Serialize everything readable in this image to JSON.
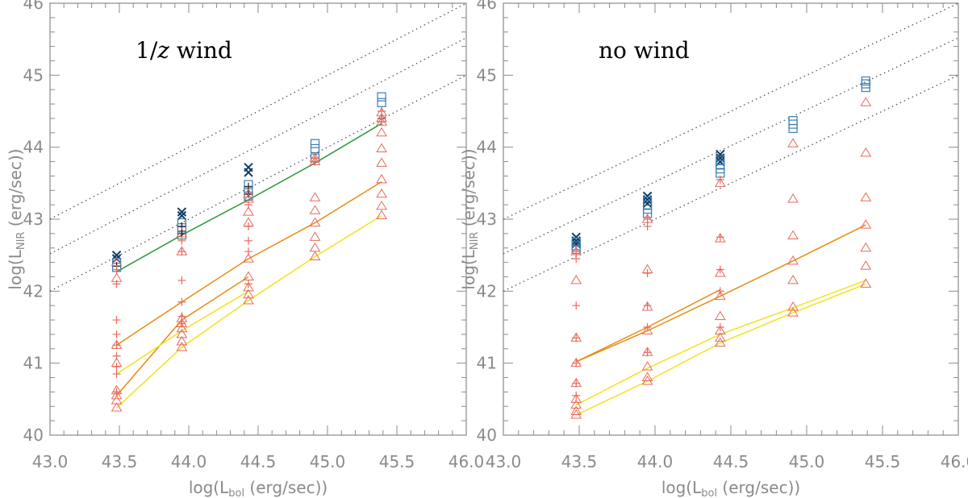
{
  "chart_data": [
    {
      "type": "scatter",
      "title": "",
      "annotation": {
        "before": "1/",
        "italic": "z",
        "after": " wind"
      },
      "xlabel": {
        "prefix": "log(L",
        "sub": "bol",
        "suffix": " (erg/sec))"
      },
      "ylabel": {
        "prefix": "log(L",
        "sub": "NIR",
        "suffix": " (erg/sec))"
      },
      "xlim": [
        43.0,
        46.0
      ],
      "ylim": [
        40.0,
        46.0
      ],
      "xticks": [
        "43.0",
        "43.5",
        "44.0",
        "44.5",
        "45.0",
        "45.5",
        "46.0"
      ],
      "yticks": [
        "40",
        "41",
        "42",
        "43",
        "44",
        "45",
        "46"
      ],
      "reference_lines": [
        {
          "name": "ratio-1-0",
          "points": [
            [
              43.0,
              43.0
            ],
            [
              46.0,
              46.0
            ]
          ]
        },
        {
          "name": "ratio-0-3",
          "points": [
            [
              43.0,
              42.52
            ],
            [
              46.0,
              45.52
            ]
          ]
        },
        {
          "name": "ratio-0-1",
          "points": [
            [
              43.0,
              42.0
            ],
            [
              46.0,
              45.0
            ]
          ]
        }
      ],
      "lines": [
        {
          "name": "green",
          "color": "#2e9a3a",
          "points": [
            [
              43.48,
              42.27
            ],
            [
              43.95,
              42.78
            ],
            [
              44.43,
              43.27
            ],
            [
              44.91,
              43.78
            ],
            [
              45.39,
              44.33
            ]
          ]
        },
        {
          "name": "orange-upper",
          "color": "#e88b12",
          "points": [
            [
              43.48,
              41.25
            ],
            [
              43.95,
              41.85
            ],
            [
              44.43,
              42.45
            ],
            [
              44.91,
              42.95
            ],
            [
              45.39,
              43.52
            ]
          ]
        },
        {
          "name": "orange-lower",
          "color": "#e88b12",
          "points": [
            [
              43.48,
              40.55
            ],
            [
              43.95,
              41.6
            ],
            [
              44.43,
              42.2
            ]
          ]
        },
        {
          "name": "yellow-upper",
          "color": "#f2e21a",
          "points": [
            [
              43.48,
              40.85
            ],
            [
              43.95,
              41.45
            ],
            [
              44.43,
              42.0
            ]
          ]
        },
        {
          "name": "yellow-lower",
          "color": "#f2e21a",
          "points": [
            [
              43.48,
              40.38
            ],
            [
              43.95,
              41.22
            ],
            [
              44.43,
              41.87
            ],
            [
              44.91,
              42.48
            ],
            [
              45.39,
              43.05
            ]
          ]
        }
      ],
      "markers": [
        {
          "series": "cross",
          "color": "#0b3a62",
          "x": [
            43.48,
            43.48,
            43.95,
            43.95,
            44.43,
            44.43
          ],
          "y": [
            42.5,
            42.45,
            43.1,
            43.05,
            43.72,
            43.65
          ]
        },
        {
          "series": "square",
          "color": "#3a7eb0",
          "x": [
            43.48,
            43.48,
            43.95,
            43.95,
            43.95,
            44.43,
            44.43,
            44.43,
            44.91,
            44.91,
            44.91,
            45.39,
            45.39
          ],
          "y": [
            42.4,
            42.33,
            42.95,
            42.88,
            42.78,
            43.48,
            43.4,
            43.32,
            44.05,
            43.98,
            43.85,
            44.7,
            44.62
          ]
        },
        {
          "series": "plus-black",
          "color": "#1a1a2e",
          "x": [
            43.48,
            43.95,
            43.95,
            44.43,
            44.43,
            44.91,
            45.39
          ],
          "y": [
            42.35,
            42.9,
            42.8,
            43.45,
            43.35,
            43.85,
            44.4
          ]
        },
        {
          "series": "plus",
          "color": "#e86a5c",
          "x": [
            43.48,
            43.48,
            43.48,
            43.48,
            43.48,
            43.48,
            43.48,
            43.48,
            43.48,
            43.95,
            43.95,
            43.95,
            43.95,
            43.95,
            43.95,
            44.43,
            44.43,
            44.43,
            44.43,
            44.43,
            44.91,
            44.91,
            45.39,
            45.39
          ],
          "y": [
            42.3,
            42.1,
            41.6,
            41.4,
            41.25,
            41.1,
            40.95,
            40.85,
            40.6,
            42.7,
            42.55,
            42.15,
            41.85,
            41.65,
            41.55,
            43.2,
            42.9,
            42.7,
            42.55,
            42.1,
            43.85,
            43.8,
            44.5,
            44.35
          ]
        },
        {
          "series": "triangle",
          "color": "#e86a5c",
          "x": [
            43.48,
            43.48,
            43.48,
            43.48,
            43.48,
            43.48,
            43.48,
            43.48,
            43.95,
            43.95,
            43.95,
            43.95,
            43.95,
            43.95,
            43.95,
            43.95,
            44.43,
            44.43,
            44.43,
            44.43,
            44.43,
            44.43,
            44.43,
            44.43,
            44.43,
            44.91,
            44.91,
            44.91,
            44.91,
            44.91,
            44.91,
            44.91,
            44.91,
            45.39,
            45.39,
            45.39,
            45.39,
            45.39,
            45.39,
            45.39,
            45.39,
            45.39,
            45.39
          ],
          "y": [
            42.4,
            42.18,
            41.25,
            41.0,
            40.62,
            40.55,
            40.48,
            40.38,
            42.8,
            42.55,
            41.62,
            41.55,
            41.48,
            41.4,
            41.3,
            41.22,
            43.35,
            43.28,
            43.1,
            42.95,
            42.45,
            42.2,
            42.05,
            41.95,
            41.87,
            43.85,
            43.8,
            43.3,
            43.12,
            42.95,
            42.75,
            42.6,
            42.48,
            44.48,
            44.4,
            44.35,
            44.2,
            43.98,
            43.78,
            43.55,
            43.35,
            43.18,
            43.05
          ]
        }
      ]
    },
    {
      "type": "scatter",
      "title": "",
      "annotation": {
        "before": "no wind",
        "italic": "",
        "after": ""
      },
      "xlabel": {
        "prefix": "log(L",
        "sub": "bol",
        "suffix": " (erg/sec))"
      },
      "ylabel": {
        "prefix": "log(L",
        "sub": "NIR",
        "suffix": " (erg/sec))"
      },
      "xlim": [
        43.0,
        46.0
      ],
      "ylim": [
        40.0,
        46.0
      ],
      "xticks": [
        "43.0",
        "43.5",
        "44.0",
        "44.5",
        "45.0",
        "45.5",
        "46.0"
      ],
      "yticks": [
        "40",
        "41",
        "42",
        "43",
        "44",
        "45",
        "46"
      ],
      "reference_lines": [
        {
          "name": "ratio-1-0",
          "points": [
            [
              43.0,
              43.0
            ],
            [
              46.0,
              46.0
            ]
          ]
        },
        {
          "name": "ratio-0-3",
          "points": [
            [
              43.0,
              42.52
            ],
            [
              46.0,
              45.52
            ]
          ]
        },
        {
          "name": "ratio-0-1",
          "points": [
            [
              43.0,
              42.0
            ],
            [
              46.0,
              45.0
            ]
          ]
        }
      ],
      "lines": [
        {
          "name": "orange-upper",
          "color": "#e88b12",
          "points": [
            [
              43.48,
              41.02
            ],
            [
              43.95,
              41.5
            ],
            [
              44.43,
              42.02
            ]
          ]
        },
        {
          "name": "orange-lower",
          "color": "#e88b12",
          "points": [
            [
              43.48,
              41.02
            ],
            [
              43.95,
              41.45
            ],
            [
              44.43,
              41.93
            ],
            [
              44.91,
              42.42
            ],
            [
              45.39,
              42.92
            ]
          ]
        },
        {
          "name": "yellow-upper",
          "color": "#f2e21a",
          "points": [
            [
              43.48,
              40.42
            ],
            [
              43.95,
              40.93
            ],
            [
              44.43,
              41.4
            ],
            [
              44.91,
              41.77
            ],
            [
              45.39,
              42.15
            ]
          ]
        },
        {
          "name": "yellow-lower",
          "color": "#f2e21a",
          "points": [
            [
              43.48,
              40.28
            ],
            [
              43.95,
              40.75
            ],
            [
              44.43,
              41.28
            ],
            [
              44.91,
              41.7
            ],
            [
              45.39,
              42.1
            ]
          ]
        }
      ],
      "markers": [
        {
          "series": "cross",
          "color": "#0b3a62",
          "x": [
            43.48,
            43.48,
            43.48,
            43.95,
            43.95,
            43.95,
            44.43,
            44.43,
            44.43
          ],
          "y": [
            42.75,
            42.7,
            42.66,
            43.32,
            43.27,
            43.22,
            43.9,
            43.85,
            43.8
          ]
        },
        {
          "series": "square",
          "color": "#3a7eb0",
          "x": [
            43.48,
            43.48,
            43.48,
            43.95,
            43.95,
            43.95,
            43.95,
            44.43,
            44.43,
            44.43,
            44.43,
            44.91,
            44.91,
            44.91,
            45.39,
            45.39,
            45.39
          ],
          "y": [
            42.68,
            42.63,
            42.58,
            43.25,
            43.2,
            43.14,
            43.08,
            43.82,
            43.76,
            43.7,
            43.64,
            44.37,
            44.32,
            44.26,
            44.92,
            44.88,
            44.83
          ]
        },
        {
          "series": "plus",
          "color": "#e86a5c",
          "x": [
            43.48,
            43.48,
            43.48,
            43.48,
            43.48,
            43.48,
            43.48,
            43.95,
            43.95,
            43.95,
            43.95,
            43.95,
            43.95,
            44.43,
            44.43,
            44.43,
            44.43,
            44.43
          ],
          "y": [
            42.55,
            42.45,
            41.8,
            41.35,
            41.0,
            40.72,
            40.55,
            43.0,
            42.9,
            42.25,
            41.8,
            41.5,
            41.15,
            43.55,
            42.75,
            42.3,
            42.0,
            41.5
          ]
        },
        {
          "series": "triangle",
          "color": "#e86a5c",
          "x": [
            43.48,
            43.48,
            43.48,
            43.48,
            43.48,
            43.48,
            43.48,
            43.48,
            43.48,
            43.95,
            43.95,
            43.95,
            43.95,
            43.95,
            43.95,
            43.95,
            43.95,
            44.43,
            44.43,
            44.43,
            44.43,
            44.43,
            44.43,
            44.43,
            44.43,
            44.91,
            44.91,
            44.91,
            44.91,
            44.91,
            44.91,
            44.91,
            45.39,
            45.39,
            45.39,
            45.39,
            45.39,
            45.39,
            45.39
          ],
          "y": [
            42.55,
            42.15,
            41.35,
            41.0,
            40.72,
            40.5,
            40.42,
            40.33,
            40.28,
            43.0,
            42.3,
            41.78,
            41.45,
            41.15,
            40.95,
            40.8,
            40.75,
            43.5,
            42.73,
            42.25,
            41.93,
            41.65,
            41.45,
            41.35,
            41.28,
            44.05,
            43.28,
            42.77,
            42.42,
            42.15,
            41.78,
            41.7,
            44.62,
            43.92,
            43.3,
            42.92,
            42.6,
            42.35,
            42.1
          ]
        }
      ]
    }
  ]
}
